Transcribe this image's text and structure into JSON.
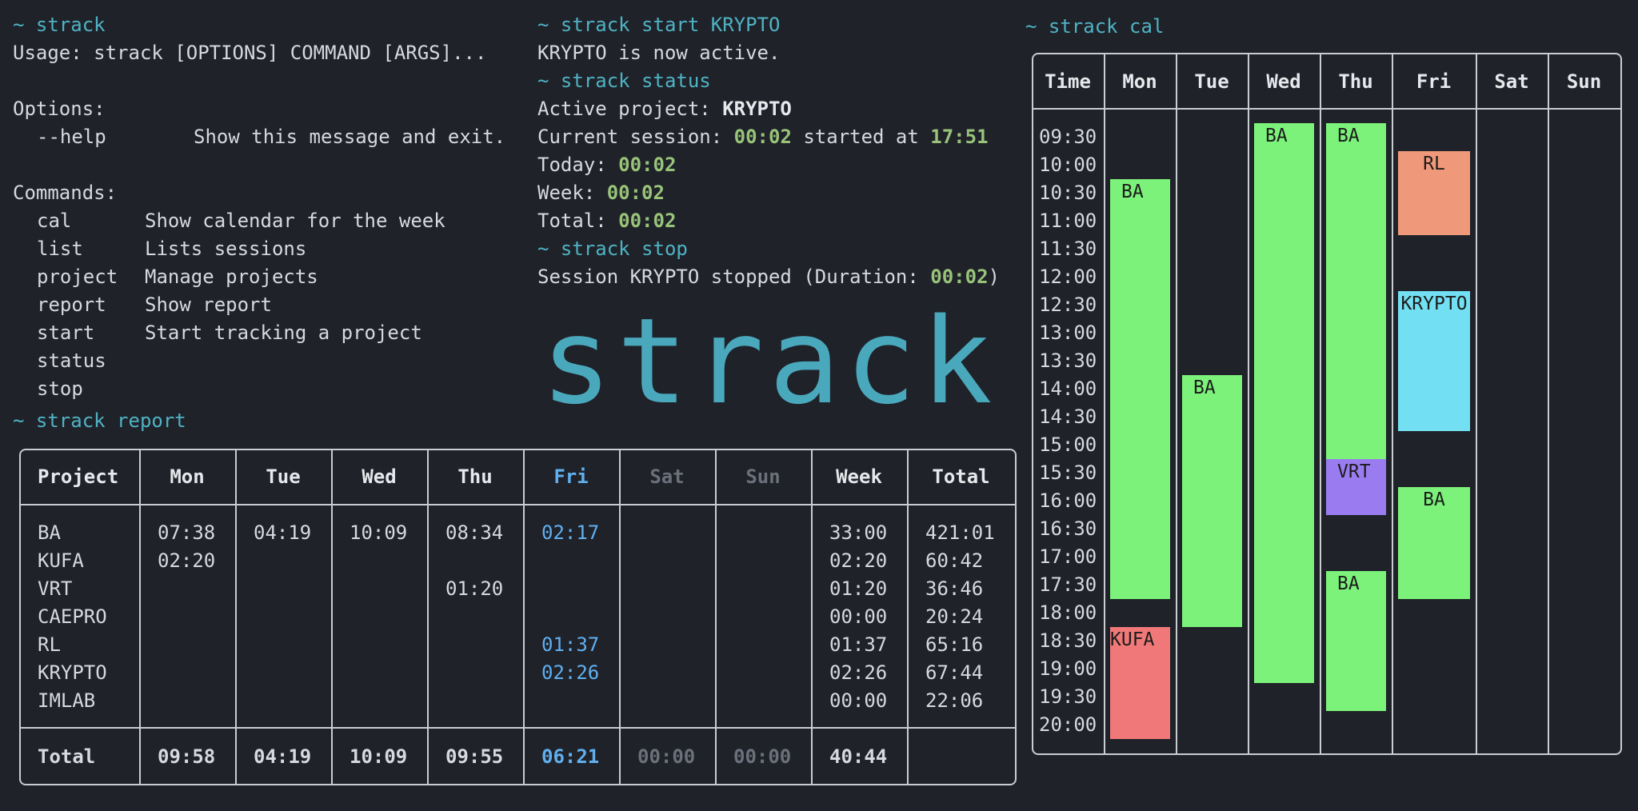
{
  "help": {
    "prompt_cmd": "~ strack",
    "usage": "Usage: strack [OPTIONS] COMMAND [ARGS]...",
    "options_title": "Options:",
    "options": [
      {
        "flag": "--help",
        "desc": "Show this message and exit."
      }
    ],
    "commands_title": "Commands:",
    "commands": [
      {
        "name": "cal",
        "desc": "Show calendar for the week"
      },
      {
        "name": "list",
        "desc": "Lists sessions"
      },
      {
        "name": "project",
        "desc": "Manage projects"
      },
      {
        "name": "report",
        "desc": "Show report"
      },
      {
        "name": "start",
        "desc": "Start tracking a project"
      },
      {
        "name": "status",
        "desc": ""
      },
      {
        "name": "stop",
        "desc": ""
      }
    ]
  },
  "session": {
    "start_cmd": "~ strack start KRYPTO",
    "start_msg": "KRYPTO is now active.",
    "status_cmd": "~ strack status",
    "active_label": "Active project: ",
    "active_value": "KRYPTO",
    "current_label": "Current session: ",
    "current_value": "00:02",
    "started_label": " started at ",
    "started_value": "17:51",
    "today_label": "Today: ",
    "today_value": "00:02",
    "week_label": "Week: ",
    "week_value": "00:02",
    "total_label": "Total: ",
    "total_value": "00:02",
    "stop_cmd": "~ strack stop",
    "stop_label": "Session KRYPTO stopped (Duration: ",
    "stop_value": "00:02",
    "stop_end": ")"
  },
  "logo": "strack",
  "report": {
    "cmd": "~ strack report",
    "headers": [
      "Project",
      "Mon",
      "Tue",
      "Wed",
      "Thu",
      "Fri",
      "Sat",
      "Sun",
      "Week",
      "Total"
    ],
    "rows": [
      [
        "BA",
        "07:38",
        "04:19",
        "10:09",
        "08:34",
        "02:17",
        "",
        "",
        "33:00",
        "421:01"
      ],
      [
        "KUFA",
        "02:20",
        "",
        "",
        "",
        "",
        "",
        "",
        "02:20",
        "60:42"
      ],
      [
        "VRT",
        "",
        "",
        "",
        "01:20",
        "",
        "",
        "",
        "01:20",
        "36:46"
      ],
      [
        "CAEPRO",
        "",
        "",
        "",
        "",
        "",
        "",
        "",
        "00:00",
        "20:24"
      ],
      [
        "RL",
        "",
        "",
        "",
        "",
        "01:37",
        "",
        "",
        "01:37",
        "65:16"
      ],
      [
        "KRYPTO",
        "",
        "",
        "",
        "",
        "02:26",
        "",
        "",
        "02:26",
        "67:44"
      ],
      [
        "IMLAB",
        "",
        "",
        "",
        "",
        "",
        "",
        "",
        "00:00",
        "22:06"
      ]
    ],
    "totals": [
      "Total",
      "09:58",
      "04:19",
      "10:09",
      "09:55",
      "06:21",
      "00:00",
      "00:00",
      "40:44",
      ""
    ]
  },
  "calendar": {
    "cmd": "~ strack cal",
    "headers": [
      "Time",
      "Mon",
      "Tue",
      "Wed",
      "Thu",
      "Fri",
      "Sat",
      "Sun"
    ],
    "times": [
      "09:30",
      "10:00",
      "10:30",
      "11:00",
      "11:30",
      "12:00",
      "12:30",
      "13:00",
      "13:30",
      "14:00",
      "14:30",
      "15:00",
      "15:30",
      "16:00",
      "16:30",
      "17:00",
      "17:30",
      "18:00",
      "18:30",
      "19:00",
      "19:30",
      "20:00"
    ],
    "events": [
      {
        "day": 1,
        "label": "BA",
        "start": "10:15",
        "end": "17:45",
        "color": "#7cf27a"
      },
      {
        "day": 1,
        "label": "KUFA",
        "start": "18:15",
        "end": "20:15",
        "color": "#f07878"
      },
      {
        "day": 2,
        "label": "BA",
        "start": "13:45",
        "end": "18:15",
        "color": "#7cf27a"
      },
      {
        "day": 3,
        "label": "BA",
        "start": "09:15",
        "end": "19:15",
        "color": "#7cf27a"
      },
      {
        "day": 4,
        "label": "BA",
        "start": "09:15",
        "end": "15:15",
        "color": "#7cf27a"
      },
      {
        "day": 4,
        "label": "VRT",
        "start": "15:15",
        "end": "16:15",
        "color": "#9b7cf0"
      },
      {
        "day": 4,
        "label": "BA",
        "start": "17:15",
        "end": "19:45",
        "color": "#7cf27a"
      },
      {
        "day": 5,
        "label": "RL",
        "start": "09:45",
        "end": "11:15",
        "color": "#f0997a"
      },
      {
        "day": 5,
        "label": "KRYPTO",
        "start": "12:15",
        "end": "14:45",
        "color": "#72e0f2"
      },
      {
        "day": 5,
        "label": "BA",
        "start": "15:45",
        "end": "17:45",
        "color": "#7cf27a"
      }
    ]
  }
}
